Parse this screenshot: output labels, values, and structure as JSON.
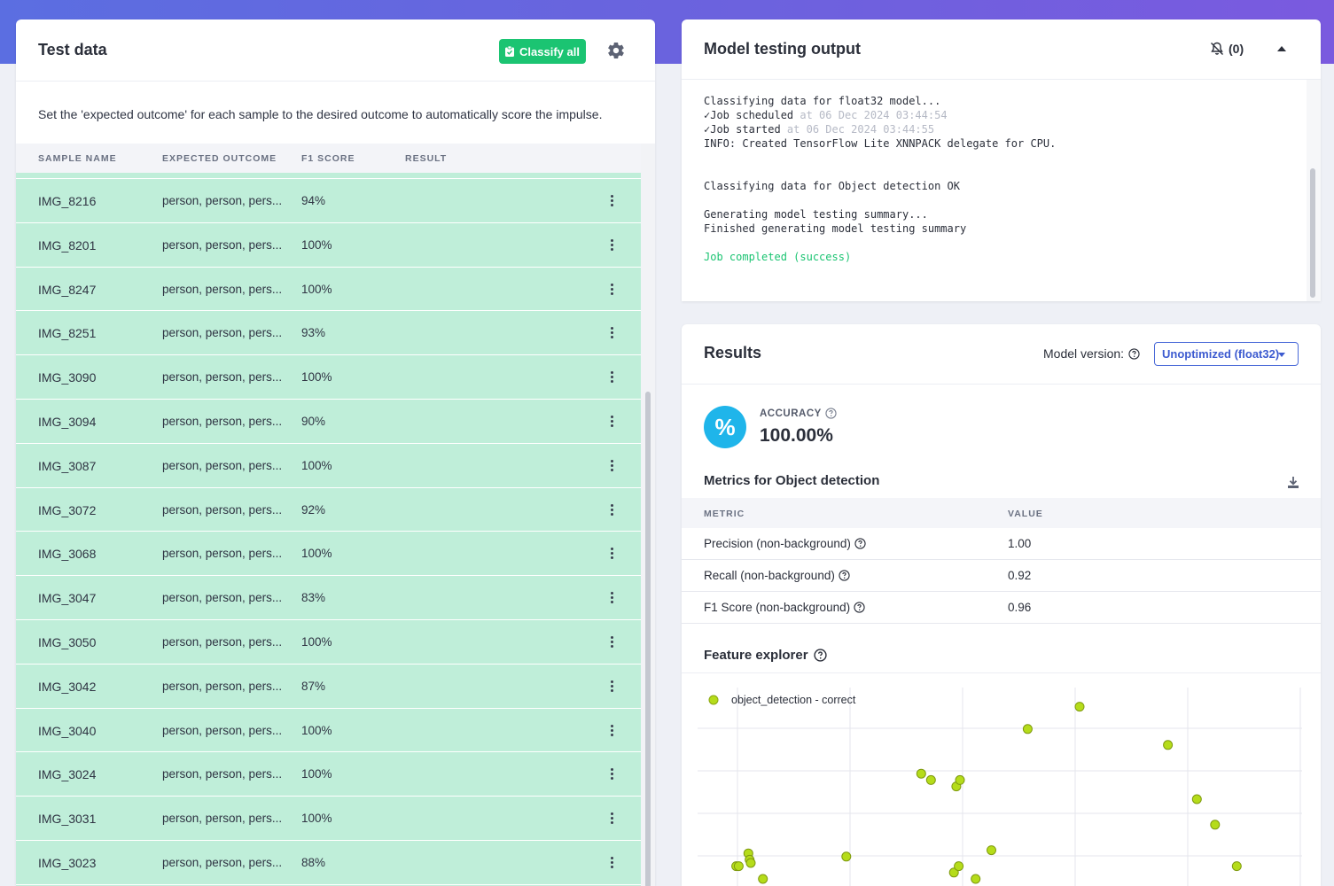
{
  "colors": {
    "accent_green": "#1bc472",
    "row_bg": "#bfeed9",
    "accuracy_blue": "#1fb5ea",
    "point_fill": "#b5dc1a",
    "brand_gradient": "#6a63de"
  },
  "test_data": {
    "title": "Test data",
    "classify_all_label": "Classify all",
    "description": "Set the 'expected outcome' for each sample to the desired outcome to automatically score the impulse.",
    "columns": {
      "sample_name": "SAMPLE NAME",
      "expected_outcome": "EXPECTED OUTCOME",
      "f1_score": "F1 SCORE",
      "result": "RESULT"
    },
    "rows": [
      {
        "name": "IMG_8216",
        "outcome": "person, person, pers...",
        "score": "94%"
      },
      {
        "name": "IMG_8201",
        "outcome": "person, person, pers...",
        "score": "100%"
      },
      {
        "name": "IMG_8247",
        "outcome": "person, person, pers...",
        "score": "100%"
      },
      {
        "name": "IMG_8251",
        "outcome": "person, person, pers...",
        "score": "93%"
      },
      {
        "name": "IMG_3090",
        "outcome": "person, person, pers...",
        "score": "100%"
      },
      {
        "name": "IMG_3094",
        "outcome": "person, person, pers...",
        "score": "90%"
      },
      {
        "name": "IMG_3087",
        "outcome": "person, person, pers...",
        "score": "100%"
      },
      {
        "name": "IMG_3072",
        "outcome": "person, person, pers...",
        "score": "92%"
      },
      {
        "name": "IMG_3068",
        "outcome": "person, person, pers...",
        "score": "100%"
      },
      {
        "name": "IMG_3047",
        "outcome": "person, person, pers...",
        "score": "83%"
      },
      {
        "name": "IMG_3050",
        "outcome": "person, person, pers...",
        "score": "100%"
      },
      {
        "name": "IMG_3042",
        "outcome": "person, person, pers...",
        "score": "87%"
      },
      {
        "name": "IMG_3040",
        "outcome": "person, person, pers...",
        "score": "100%"
      },
      {
        "name": "IMG_3024",
        "outcome": "person, person, pers...",
        "score": "100%"
      },
      {
        "name": "IMG_3031",
        "outcome": "person, person, pers...",
        "score": "100%"
      },
      {
        "name": "IMG_3023",
        "outcome": "person, person, pers...",
        "score": "88%"
      }
    ]
  },
  "console": {
    "title": "Model testing output",
    "notification_count": "(0)",
    "lines": {
      "l1": "Classifying data for float32 model...",
      "l2_a": "✓Job scheduled",
      "l2_b": " at 06 Dec 2024 03:44:54",
      "l3_a": "✓Job started",
      "l3_b": " at 06 Dec 2024 03:44:55",
      "l4": "INFO: Created TensorFlow Lite XNNPACK delegate for CPU.",
      "l5": "Classifying data for Object detection OK",
      "l6": "Generating model testing summary...",
      "l7": "Finished generating model testing summary",
      "l8": "Job completed (success)"
    }
  },
  "results": {
    "title": "Results",
    "model_version_label": "Model version:",
    "model_version_value": "Unoptimized (float32)",
    "accuracy_label": "ACCURACY",
    "accuracy_value": "100.00%",
    "accuracy_icon": "%",
    "metrics_title": "Metrics for Object detection",
    "metrics_columns": {
      "metric": "METRIC",
      "value": "VALUE"
    },
    "metrics": [
      {
        "metric": "Precision (non-background)",
        "value": "1.00"
      },
      {
        "metric": "Recall (non-background)",
        "value": "0.92"
      },
      {
        "metric": "F1 Score (non-background)",
        "value": "0.96"
      }
    ],
    "feature_explorer_title": "Feature explorer"
  },
  "chart_data": {
    "type": "scatter",
    "grid": true,
    "legend_position": "top-left",
    "series": [
      {
        "name": "object_detection - correct",
        "color": "#b5dc1a",
        "points": [
          [
            0.32,
            0.39
          ],
          [
            0.34,
            0.39
          ],
          [
            0.42,
            0.43
          ],
          [
            0.43,
            0.41
          ],
          [
            0.44,
            0.4
          ],
          [
            0.54,
            0.35
          ],
          [
            1.23,
            0.42
          ],
          [
            1.85,
            0.68
          ],
          [
            1.93,
            0.66
          ],
          [
            2.14,
            0.64
          ],
          [
            2.17,
            0.66
          ],
          [
            2.12,
            0.37
          ],
          [
            2.16,
            0.39
          ],
          [
            2.3,
            0.35
          ],
          [
            2.43,
            0.44
          ],
          [
            2.73,
            0.82
          ],
          [
            3.16,
            0.89
          ],
          [
            3.89,
            0.77
          ],
          [
            4.13,
            0.6
          ],
          [
            4.28,
            0.52
          ],
          [
            4.46,
            0.39
          ]
        ]
      }
    ],
    "xlim": [
      0,
      5
    ],
    "ylim": [
      0.3,
      0.95
    ]
  }
}
